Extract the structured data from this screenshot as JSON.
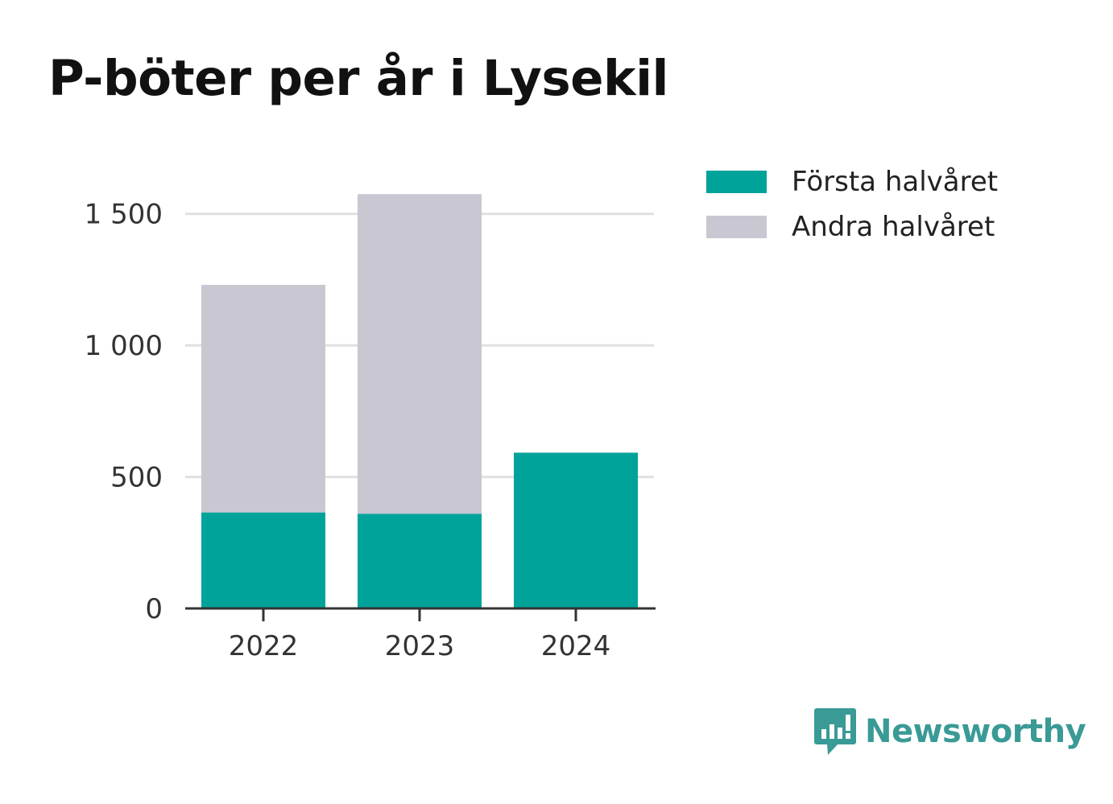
{
  "title": "P-böter per år i Lysekil",
  "colors": {
    "first_half": "#00a39a",
    "second_half": "#c8c7d2",
    "grid": "#e0e0e0",
    "axis": "#333333",
    "brand": "#3a9a95"
  },
  "legend": [
    {
      "label": "Första halvåret",
      "color": "#00a39a"
    },
    {
      "label": "Andra halvåret",
      "color": "#c8c7d2"
    }
  ],
  "brand": {
    "name": "Newsworthy",
    "icon": "newsworthy-logo-icon"
  },
  "chart_data": {
    "type": "bar",
    "stacked": true,
    "categories": [
      "2022",
      "2023",
      "2024"
    ],
    "series": [
      {
        "name": "Första halvåret",
        "values": [
          365,
          360,
          592
        ]
      },
      {
        "name": "Andra halvåret",
        "values": [
          865,
          1215,
          0
        ]
      }
    ],
    "ylim": [
      0,
      1600
    ],
    "yticks": [
      0,
      500,
      1000,
      1500
    ],
    "ytick_labels": [
      "0",
      "500",
      "1 000",
      "1 500"
    ],
    "grid": true,
    "legend_position": "top-right"
  }
}
